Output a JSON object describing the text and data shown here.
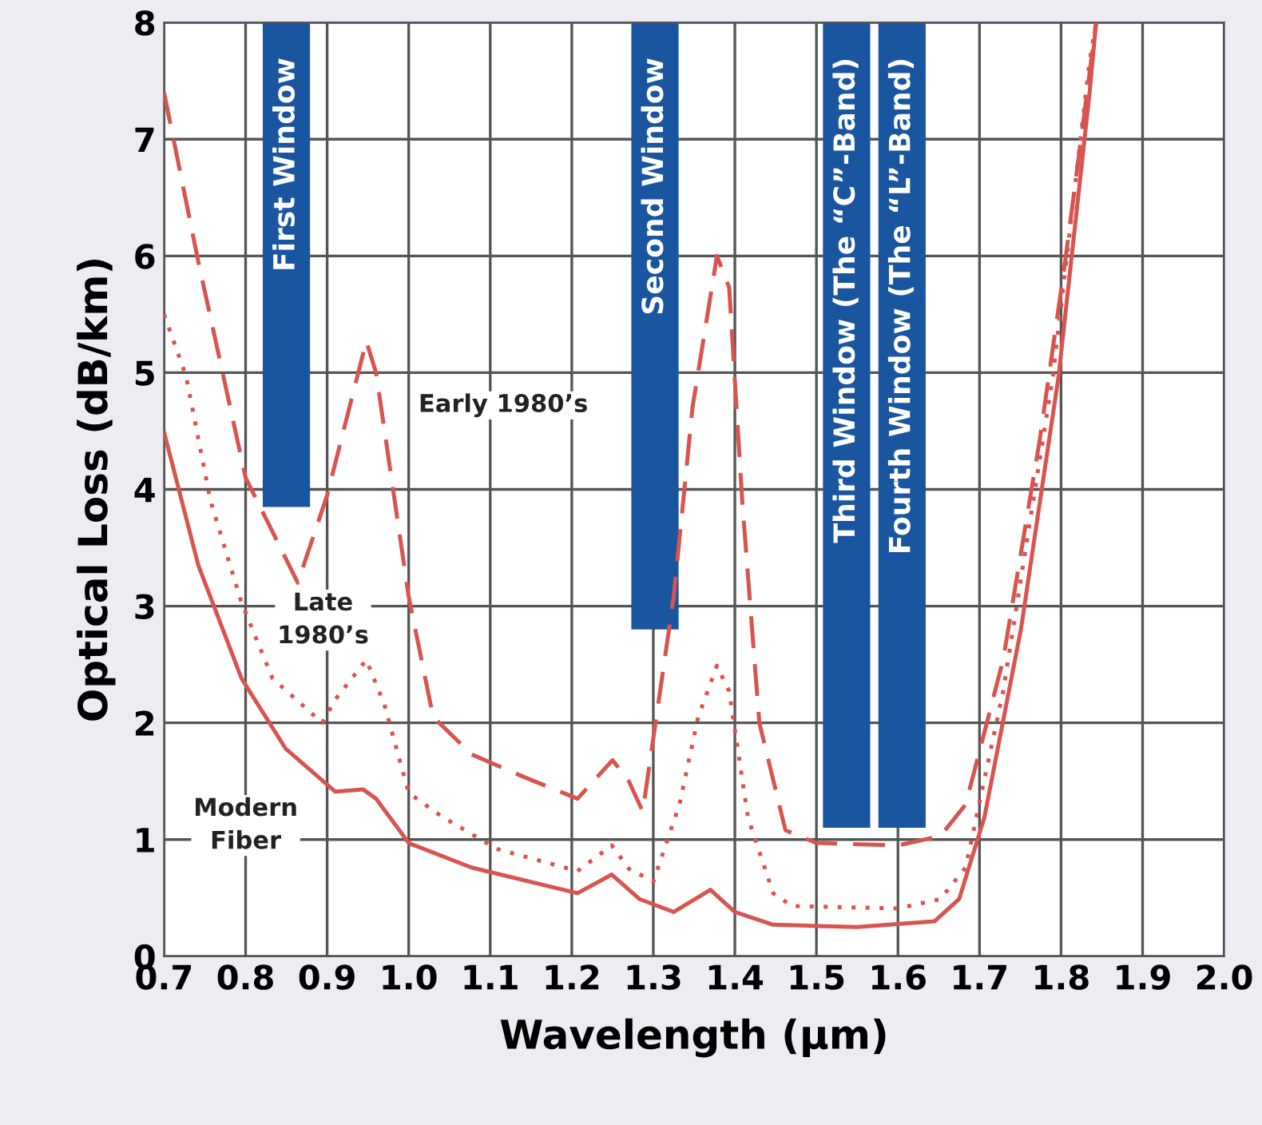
{
  "chart_data": {
    "type": "line",
    "xlabel": "Wavelength (μm)",
    "ylabel": "Optical Loss (dB/km)",
    "xlim": [
      0.7,
      2.0
    ],
    "ylim": [
      0,
      8
    ],
    "xticks": [
      0.7,
      0.8,
      0.9,
      {
        "value": 1,
        "label": "1.0"
      },
      1.1,
      1.2,
      1.3,
      1.4,
      1.5,
      1.6,
      1.7,
      1.8,
      1.9,
      {
        "value": 2,
        "label": "2.0"
      }
    ],
    "yticks": [
      0,
      1,
      2,
      3,
      4,
      5,
      6,
      7,
      8
    ],
    "grid": true,
    "marker": "none",
    "series": [
      {
        "type": "bar",
        "name": "First Window",
        "color": "#1a56a0",
        "x": [
          0.85
        ],
        "base": [
          3.85
        ],
        "values": [
          4.15
        ]
      },
      {
        "type": "bar",
        "name": "Second Window",
        "color": "#1a56a0",
        "x": [
          1.302
        ],
        "base": [
          2.8
        ],
        "values": [
          5.2
        ]
      },
      {
        "type": "bar",
        "name": "Third Window (The “C”-Band)",
        "color": "#1a56a0",
        "x": [
          1.537
        ],
        "base": [
          1.1
        ],
        "values": [
          6.9
        ]
      },
      {
        "type": "bar",
        "name": "Fourth Window (The “L”-Band)",
        "color": "#1a56a0",
        "x": [
          1.605
        ],
        "base": [
          1.1
        ],
        "values": [
          6.9
        ]
      },
      {
        "line_style": "dashed",
        "color": "#d9534f",
        "x": [
          0.7,
          0.742,
          0.8,
          0.864,
          0.9,
          0.948,
          0.96,
          1.0,
          1.03,
          1.077,
          1.14,
          1.207,
          1.25,
          1.27,
          1.287,
          1.325,
          1.348,
          1.378,
          1.393,
          1.409,
          1.43,
          1.462,
          1.5,
          1.6,
          1.652,
          1.683,
          1.729,
          1.774,
          1.805,
          1.843
        ],
        "values": [
          7.4,
          5.95,
          4.1,
          3.2,
          3.95,
          5.27,
          5.0,
          3.08,
          2.05,
          1.73,
          1.54,
          1.35,
          1.68,
          1.5,
          1.24,
          3.08,
          4.7,
          6.0,
          5.73,
          3.9,
          2.0,
          1.08,
          0.97,
          0.95,
          1.03,
          1.3,
          2.54,
          4.43,
          5.95,
          8.0
        ]
      },
      {
        "line_style": "dotted",
        "color": "#d9534f",
        "x": [
          0.7,
          0.727,
          0.757,
          0.795,
          0.833,
          0.894,
          0.91,
          0.948,
          0.97,
          1.0,
          1.04,
          1.108,
          1.207,
          1.249,
          1.27,
          1.3,
          1.332,
          1.355,
          1.378,
          1.393,
          1.416,
          1.447,
          1.47,
          1.6,
          1.652,
          1.683,
          1.729,
          1.79,
          1.835,
          1.843
        ],
        "values": [
          5.5,
          4.97,
          3.9,
          3.03,
          2.38,
          2.0,
          2.2,
          2.54,
          2.16,
          1.4,
          1.2,
          0.92,
          0.73,
          0.95,
          0.75,
          0.64,
          1.3,
          2.05,
          2.49,
          2.27,
          1.19,
          0.54,
          0.43,
          0.41,
          0.49,
          0.76,
          2.27,
          4.97,
          7.67,
          8.0
        ]
      },
      {
        "line_style": "solid",
        "color": "#d9534f",
        "x": [
          0.7,
          0.742,
          0.795,
          0.849,
          0.91,
          0.944,
          0.96,
          1.0,
          1.077,
          1.207,
          1.249,
          1.283,
          1.325,
          1.37,
          1.4,
          1.447,
          1.55,
          1.645,
          1.675,
          1.706,
          1.751,
          1.797,
          1.835,
          1.843
        ],
        "values": [
          4.49,
          3.35,
          2.38,
          1.78,
          1.41,
          1.43,
          1.35,
          0.97,
          0.76,
          0.54,
          0.7,
          0.49,
          0.38,
          0.57,
          0.38,
          0.27,
          0.25,
          0.3,
          0.49,
          1.19,
          2.81,
          4.97,
          7.4,
          8.0
        ]
      }
    ],
    "annotations": [
      "Early 1980’s",
      "Late\n1980’s",
      "Modern\nFiber"
    ]
  }
}
